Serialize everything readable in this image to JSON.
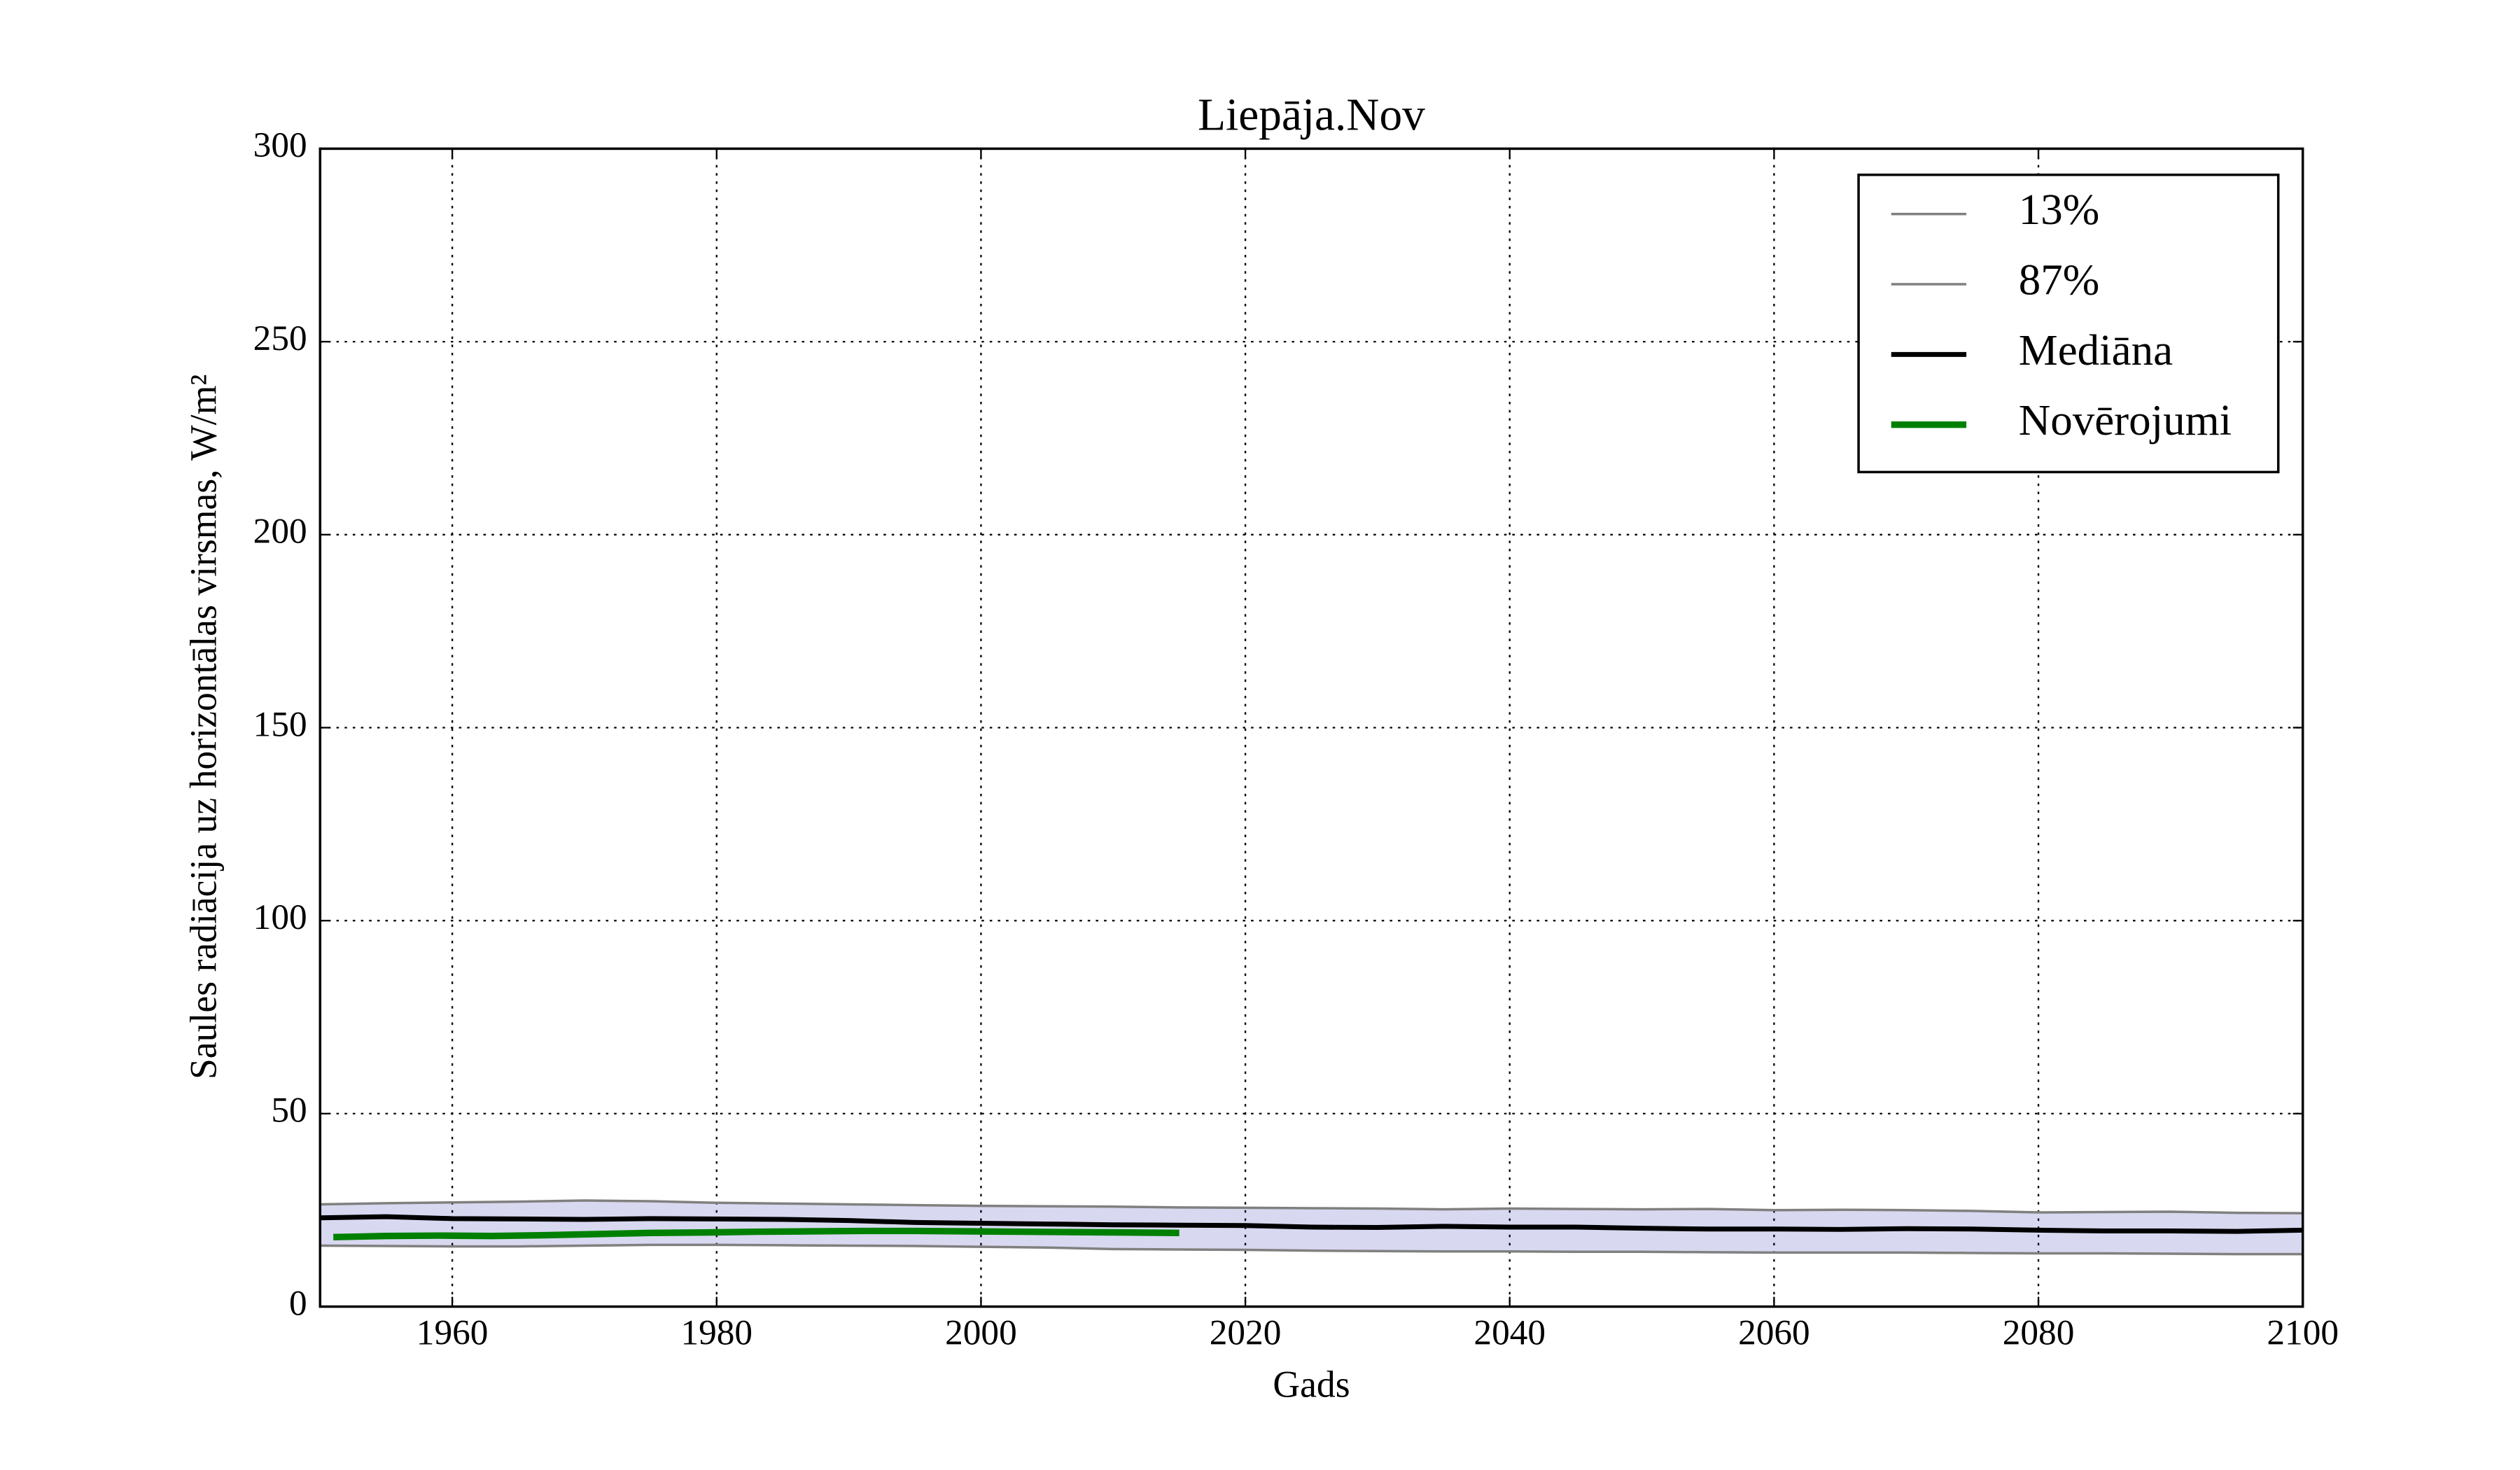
{
  "chart_data": {
    "type": "line",
    "title": "Liepāja.Nov",
    "xlabel": "Gads",
    "ylabel": "Saules radiācija uz horizontālas virsmas, W/m²",
    "x": [
      1950,
      1955,
      1960,
      1965,
      1970,
      1975,
      1980,
      1985,
      1990,
      1995,
      2000,
      2005,
      2010,
      2015,
      2020,
      2025,
      2030,
      2035,
      2040,
      2045,
      2050,
      2055,
      2060,
      2065,
      2070,
      2075,
      2080,
      2085,
      2090,
      2095,
      2100
    ],
    "series": [
      {
        "name": "13%",
        "color": "#808080",
        "values": [
          15.8,
          15.7,
          15.6,
          15.6,
          15.8,
          16,
          16,
          15.9,
          15.8,
          15.7,
          15.5,
          15.3,
          14.9,
          14.8,
          14.7,
          14.5,
          14.4,
          14.3,
          14.3,
          14.2,
          14.2,
          14.1,
          14.0,
          14.0,
          14.0,
          13.9,
          13.8,
          13.8,
          13.7,
          13.6,
          13.6
        ]
      },
      {
        "name": "87%",
        "color": "#808080",
        "values": [
          26.5,
          26.8,
          27,
          27.2,
          27.5,
          27.3,
          26.9,
          26.7,
          26.5,
          26.3,
          26.1,
          26.0,
          25.9,
          25.7,
          25.6,
          25.5,
          25.4,
          25.2,
          25.4,
          25.3,
          25.2,
          25.3,
          25.0,
          25.1,
          25.0,
          24.8,
          24.4,
          24.5,
          24.6,
          24.3,
          24.2
        ]
      },
      {
        "name": "Mediāna",
        "color": "#000000",
        "values": [
          23,
          23.3,
          22.8,
          22.7,
          22.6,
          22.8,
          22.7,
          22.6,
          22.3,
          21.8,
          21.6,
          21.4,
          21.2,
          21.1,
          21,
          20.6,
          20.5,
          20.8,
          20.6,
          20.6,
          20.3,
          20.1,
          20.1,
          20.0,
          20.2,
          20.1,
          19.8,
          19.6,
          19.6,
          19.5,
          19.8
        ]
      },
      {
        "name": "Novērojumi",
        "color": "#008000",
        "x": [
          1951,
          1955,
          1959,
          1963,
          1967,
          1971,
          1975,
          1979,
          1983,
          1987,
          1991,
          1995,
          1999,
          2003,
          2007,
          2011,
          2015
        ],
        "values": [
          18,
          18.3,
          18.4,
          18.3,
          18.5,
          18.8,
          19.1,
          19.2,
          19.4,
          19.5,
          19.6,
          19.6,
          19.5,
          19.4,
          19.3,
          19.2,
          19.1
        ]
      }
    ],
    "band_color": "#d8d8f0",
    "xlim": [
      1950,
      2100
    ],
    "xticks": [
      1960,
      1980,
      2000,
      2020,
      2040,
      2060,
      2080,
      2100
    ],
    "ylim": [
      0,
      300
    ],
    "yticks": [
      0,
      50,
      100,
      150,
      200,
      250,
      300
    ],
    "grid": true,
    "legend": "upper right"
  }
}
